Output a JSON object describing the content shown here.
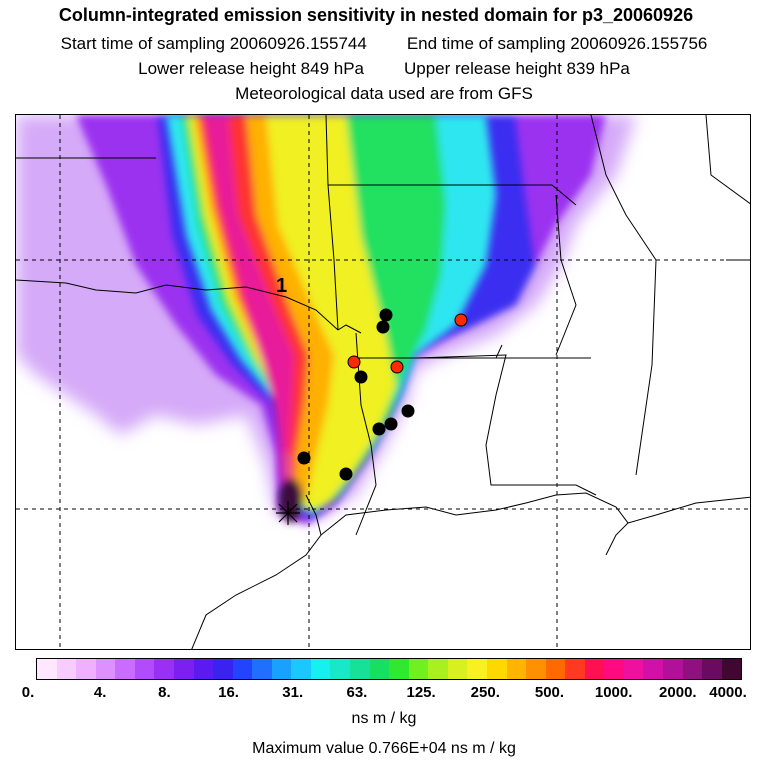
{
  "header": {
    "title": "Column-integrated emission sensitivity in nested domain for p3_20060926",
    "start_label": "Start time of sampling 20060926.155744",
    "end_label": "End time of sampling 20060926.155756",
    "lower_label": "Lower release height  849 hPa",
    "upper_label": "Upper release height  839 hPa",
    "met_label": "Meteorological data used are from GFS"
  },
  "map": {
    "plume_label": "1",
    "colors": {
      "outer_purple": "#c78ef5",
      "deep_purple": "#9b30f0",
      "blue": "#3b2ef0",
      "cyan": "#2ee6f0",
      "green": "#22e060",
      "yellow": "#f0f020",
      "orange": "#ffb000",
      "red": "#ff3030",
      "magenta": "#e81a9a",
      "dark": "#3a0a3a",
      "point_black": "#000000",
      "point_red": "#ff2a00"
    }
  },
  "colorbar": {
    "colors": [
      "#ffe8ff",
      "#f8ccff",
      "#eeb0ff",
      "#df90ff",
      "#c96cff",
      "#b24cfa",
      "#9a30f2",
      "#7d1ff0",
      "#5a1af0",
      "#3a22f0",
      "#2244ff",
      "#1f70ff",
      "#1aa0ff",
      "#1ac8ff",
      "#17f0f0",
      "#17e8c8",
      "#17e098",
      "#17e060",
      "#30e830",
      "#70f020",
      "#a8f020",
      "#d8f020",
      "#f8f020",
      "#ffd800",
      "#ffb400",
      "#ff9000",
      "#ff6a00",
      "#ff3a20",
      "#ff1050",
      "#ff0a80",
      "#f010a0",
      "#d010a8",
      "#b0109a",
      "#901080",
      "#6a0a60",
      "#400830"
    ],
    "tick_labels": [
      "0.",
      "4.",
      "8.",
      "16.",
      "31.",
      "63.",
      "125.",
      "250.",
      "500.",
      "1000.",
      "2000.",
      "4000."
    ]
  },
  "units_label": "ns m / kg",
  "max_value_label": "Maximum value  0.766E+04 ns m / kg"
}
